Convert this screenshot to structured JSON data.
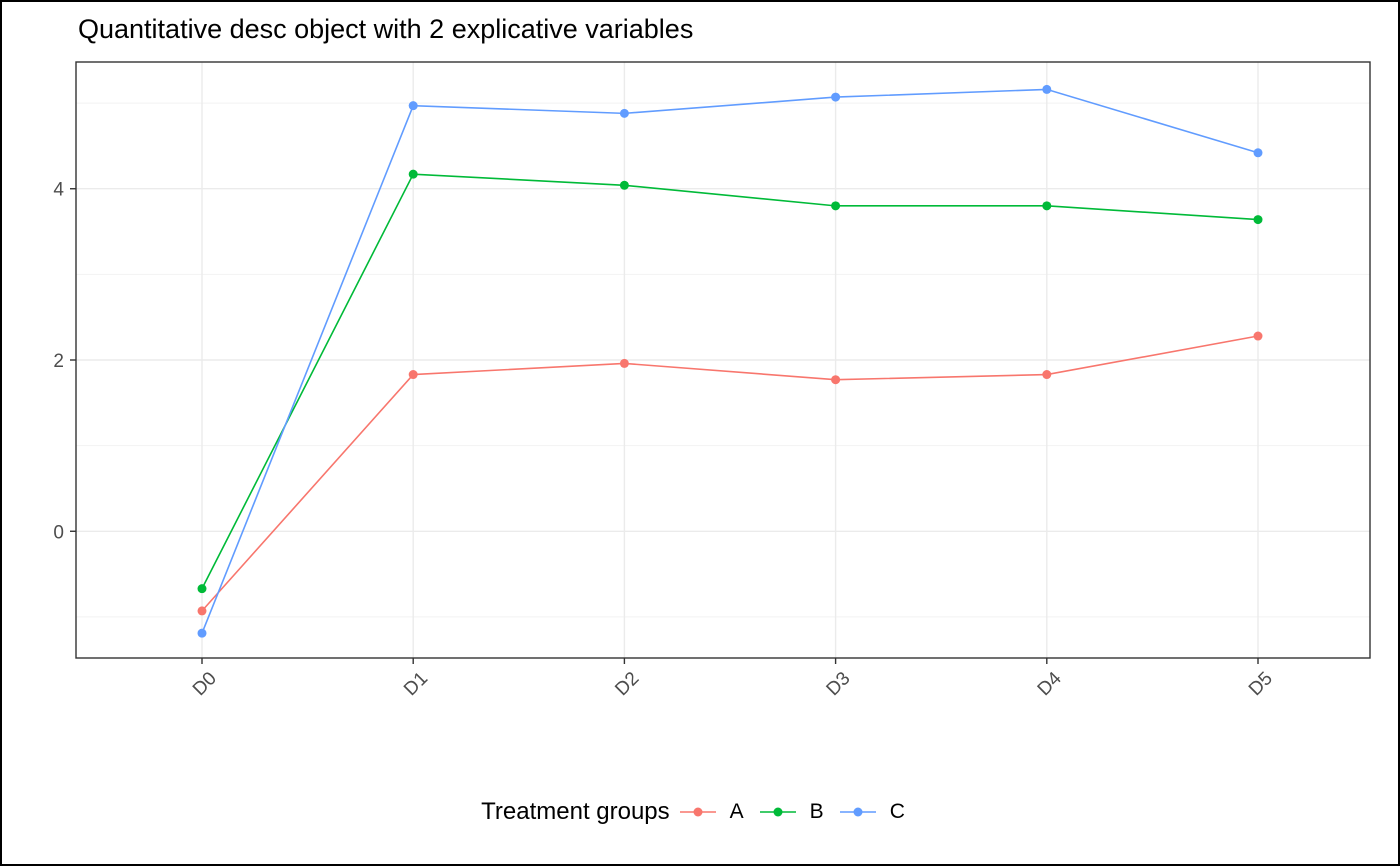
{
  "chart_data": {
    "type": "line",
    "title": "Quantitative desc object with 2 explicative variables",
    "xlabel": "",
    "ylabel": "",
    "categories": [
      "D0",
      "D1",
      "D2",
      "D3",
      "D4",
      "D5"
    ],
    "ylim": [
      -1.48,
      5.48
    ],
    "yticks": [
      0,
      2,
      4
    ],
    "grid": true,
    "legend": {
      "title": "Treatment groups",
      "placement": "bottom"
    },
    "series": [
      {
        "name": "A",
        "color": "#F8766D",
        "values": [
          -0.93,
          1.83,
          1.96,
          1.77,
          1.83,
          2.28
        ]
      },
      {
        "name": "B",
        "color": "#00BA38",
        "values": [
          -0.67,
          4.17,
          4.04,
          3.8,
          3.8,
          3.64
        ]
      },
      {
        "name": "C",
        "color": "#619CFF",
        "values": [
          -1.19,
          4.97,
          4.88,
          5.07,
          5.16,
          4.42
        ]
      }
    ]
  }
}
